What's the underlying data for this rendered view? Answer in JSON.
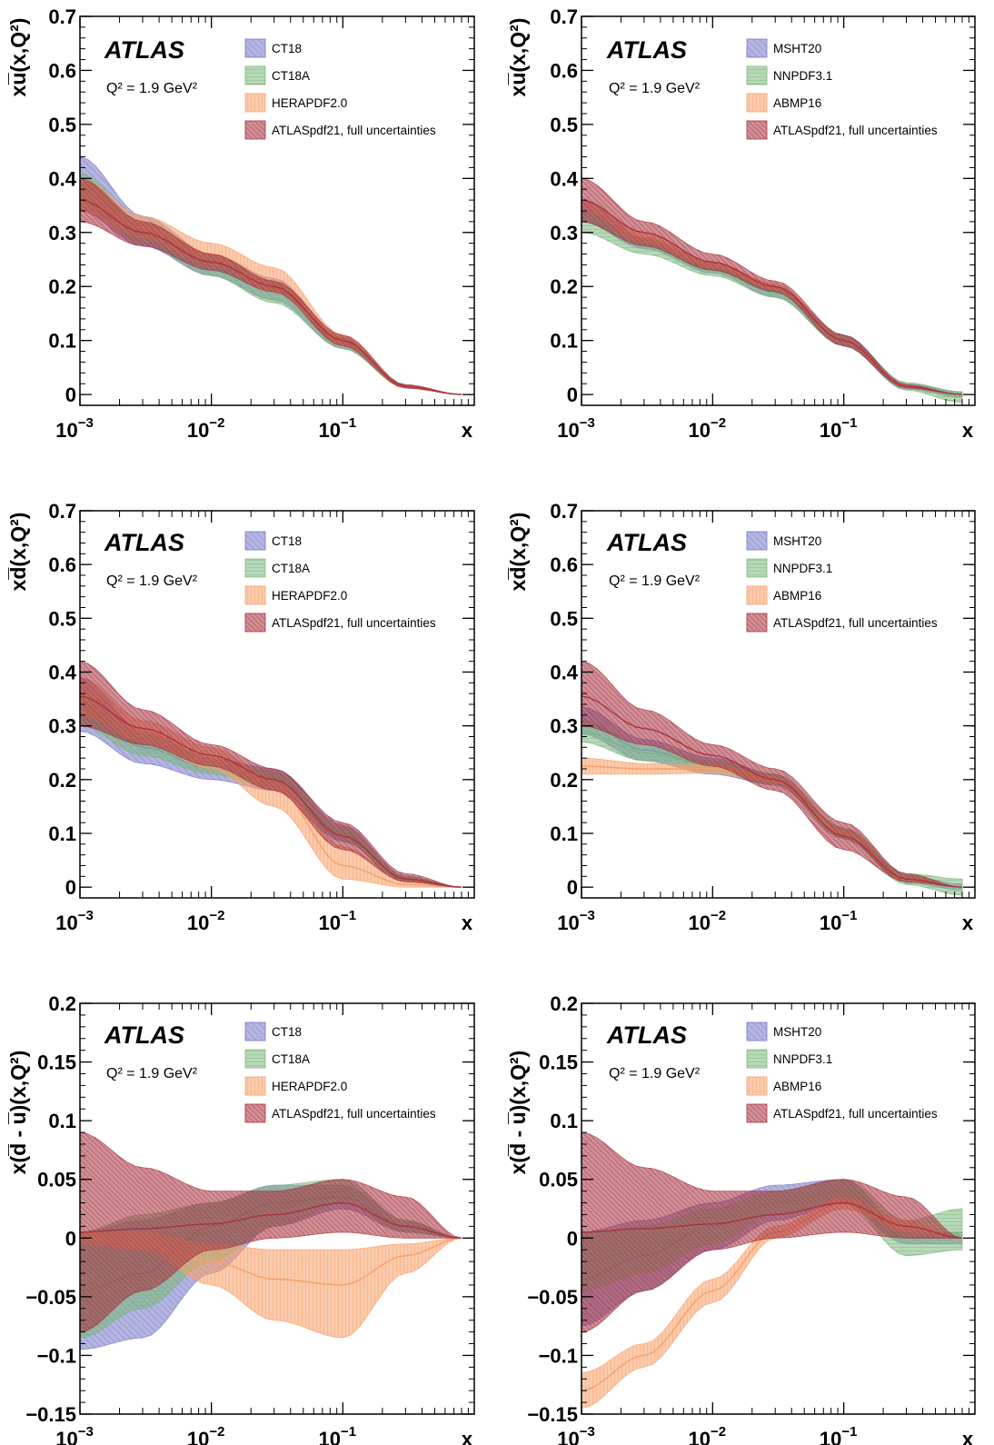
{
  "figure": {
    "experiment": "ATLAS",
    "scale_label": "Q² = 1.9 GeV²",
    "x_axis_symbol": "x",
    "x_tick_labels": [
      "10",
      "10",
      "10"
    ],
    "x_tick_exponents": [
      "−3",
      "−2",
      "−1"
    ]
  },
  "colors": {
    "blue": "#7878c8",
    "green": "#7cb87c",
    "orange": "#f7a06a",
    "red": "#a83240",
    "frame": "#000000"
  },
  "chart_data": [
    {
      "type": "line",
      "panel": "row1-left",
      "ylabel": "xu̅(x,Q²)",
      "xscale": "log",
      "xlim": [
        0.001,
        1
      ],
      "ylim": [
        -0.02,
        0.7
      ],
      "yticks": [
        0,
        0.1,
        0.2,
        0.3,
        0.4,
        0.5,
        0.6,
        0.7
      ],
      "ytick_labels": [
        "0",
        "0.1",
        "0.2",
        "0.3",
        "0.4",
        "0.5",
        "0.6",
        "0.7"
      ],
      "legend": [
        "CT18",
        "CT18A",
        "HERAPDF2.0",
        "ATLASpdf21, full uncertainties"
      ],
      "x": [
        0.001,
        0.003,
        0.01,
        0.03,
        0.1,
        0.3,
        0.8
      ],
      "series": [
        {
          "name": "CT18",
          "color": "blue",
          "values": [
            0.39,
            0.3,
            0.24,
            0.195,
            0.095,
            0.015,
            0
          ],
          "lower": [
            0.34,
            0.275,
            0.22,
            0.175,
            0.085,
            0.012,
            0
          ],
          "upper": [
            0.44,
            0.33,
            0.26,
            0.215,
            0.105,
            0.018,
            0
          ]
        },
        {
          "name": "CT18A",
          "color": "green",
          "values": [
            0.38,
            0.3,
            0.24,
            0.19,
            0.095,
            0.015,
            0
          ],
          "lower": [
            0.35,
            0.28,
            0.22,
            0.17,
            0.085,
            0.012,
            0
          ],
          "upper": [
            0.41,
            0.32,
            0.26,
            0.21,
            0.105,
            0.018,
            0
          ]
        },
        {
          "name": "HERAPDF2.0",
          "color": "orange",
          "values": [
            0.37,
            0.31,
            0.26,
            0.21,
            0.1,
            0.015,
            0
          ],
          "lower": [
            0.34,
            0.29,
            0.24,
            0.19,
            0.09,
            0.012,
            0
          ],
          "upper": [
            0.4,
            0.33,
            0.28,
            0.235,
            0.11,
            0.018,
            0
          ]
        },
        {
          "name": "ATLASpdf21, full uncertainties",
          "color": "red",
          "values": [
            0.36,
            0.3,
            0.245,
            0.2,
            0.1,
            0.015,
            0
          ],
          "lower": [
            0.32,
            0.275,
            0.23,
            0.19,
            0.09,
            0.012,
            0
          ],
          "upper": [
            0.4,
            0.32,
            0.26,
            0.21,
            0.11,
            0.018,
            0
          ]
        }
      ]
    },
    {
      "type": "line",
      "panel": "row1-right",
      "ylabel": "xu̅(x,Q²)",
      "xscale": "log",
      "xlim": [
        0.001,
        1
      ],
      "ylim": [
        -0.02,
        0.7
      ],
      "yticks": [
        0,
        0.1,
        0.2,
        0.3,
        0.4,
        0.5,
        0.6,
        0.7
      ],
      "ytick_labels": [
        "0",
        "0.1",
        "0.2",
        "0.3",
        "0.4",
        "0.5",
        "0.6",
        "0.7"
      ],
      "legend": [
        "MSHT20",
        "NNPDF3.1",
        "ABMP16",
        "ATLASpdf21, full uncertainties"
      ],
      "x": [
        0.001,
        0.003,
        0.01,
        0.03,
        0.1,
        0.3,
        0.8
      ],
      "series": [
        {
          "name": "MSHT20",
          "color": "blue",
          "values": [
            0.34,
            0.28,
            0.235,
            0.19,
            0.1,
            0.015,
            0
          ],
          "lower": [
            0.32,
            0.27,
            0.225,
            0.18,
            0.09,
            0.01,
            -0.005
          ],
          "upper": [
            0.36,
            0.29,
            0.245,
            0.2,
            0.11,
            0.02,
            0.005
          ]
        },
        {
          "name": "NNPDF3.1",
          "color": "green",
          "values": [
            0.32,
            0.275,
            0.23,
            0.19,
            0.1,
            0.015,
            -0.005
          ],
          "lower": [
            0.3,
            0.26,
            0.22,
            0.18,
            0.09,
            0.008,
            -0.015
          ],
          "upper": [
            0.34,
            0.29,
            0.24,
            0.2,
            0.11,
            0.022,
            0.005
          ]
        },
        {
          "name": "ABMP16",
          "color": "orange",
          "values": [
            0.35,
            0.29,
            0.24,
            0.2,
            0.1,
            0.015,
            0
          ],
          "lower": [
            0.34,
            0.28,
            0.235,
            0.195,
            0.097,
            0.013,
            0
          ],
          "upper": [
            0.36,
            0.3,
            0.245,
            0.205,
            0.103,
            0.017,
            0
          ]
        },
        {
          "name": "ATLASpdf21, full uncertainties",
          "color": "red",
          "values": [
            0.36,
            0.3,
            0.245,
            0.2,
            0.1,
            0.015,
            0
          ],
          "lower": [
            0.32,
            0.275,
            0.23,
            0.19,
            0.09,
            0.012,
            0
          ],
          "upper": [
            0.4,
            0.32,
            0.26,
            0.21,
            0.11,
            0.018,
            0
          ]
        }
      ]
    },
    {
      "type": "line",
      "panel": "row2-left",
      "ylabel": "xd̅(x,Q²)",
      "xscale": "log",
      "xlim": [
        0.001,
        1
      ],
      "ylim": [
        -0.02,
        0.7
      ],
      "yticks": [
        0,
        0.1,
        0.2,
        0.3,
        0.4,
        0.5,
        0.6,
        0.7
      ],
      "ytick_labels": [
        "0",
        "0.1",
        "0.2",
        "0.3",
        "0.4",
        "0.5",
        "0.6",
        "0.7"
      ],
      "legend": [
        "CT18",
        "CT18A",
        "HERAPDF2.0",
        "ATLASpdf21, full uncertainties"
      ],
      "x": [
        0.001,
        0.003,
        0.01,
        0.03,
        0.1,
        0.3,
        0.8
      ],
      "series": [
        {
          "name": "CT18",
          "color": "blue",
          "values": [
            0.34,
            0.26,
            0.22,
            0.2,
            0.1,
            0.015,
            0
          ],
          "lower": [
            0.29,
            0.23,
            0.2,
            0.18,
            0.085,
            0.01,
            0
          ],
          "upper": [
            0.39,
            0.29,
            0.24,
            0.22,
            0.115,
            0.02,
            0
          ]
        },
        {
          "name": "CT18A",
          "color": "green",
          "values": [
            0.33,
            0.265,
            0.225,
            0.2,
            0.1,
            0.015,
            0
          ],
          "lower": [
            0.3,
            0.245,
            0.21,
            0.185,
            0.088,
            0.01,
            0
          ],
          "upper": [
            0.36,
            0.285,
            0.24,
            0.215,
            0.112,
            0.02,
            0
          ]
        },
        {
          "name": "HERAPDF2.0",
          "color": "orange",
          "values": [
            0.36,
            0.29,
            0.24,
            0.19,
            0.04,
            0.005,
            0
          ],
          "lower": [
            0.32,
            0.27,
            0.22,
            0.15,
            0.015,
            0,
            0
          ],
          "upper": [
            0.39,
            0.31,
            0.26,
            0.2,
            0.075,
            0.012,
            0
          ]
        },
        {
          "name": "ATLASpdf21, full uncertainties",
          "color": "red",
          "values": [
            0.355,
            0.295,
            0.245,
            0.2,
            0.095,
            0.015,
            0
          ],
          "lower": [
            0.3,
            0.265,
            0.225,
            0.18,
            0.07,
            0.01,
            0
          ],
          "upper": [
            0.42,
            0.33,
            0.265,
            0.22,
            0.12,
            0.025,
            0
          ]
        }
      ]
    },
    {
      "type": "line",
      "panel": "row2-right",
      "ylabel": "xd̅(x,Q²)",
      "xscale": "log",
      "xlim": [
        0.001,
        1
      ],
      "ylim": [
        -0.02,
        0.7
      ],
      "yticks": [
        0,
        0.1,
        0.2,
        0.3,
        0.4,
        0.5,
        0.6,
        0.7
      ],
      "ytick_labels": [
        "0",
        "0.1",
        "0.2",
        "0.3",
        "0.4",
        "0.5",
        "0.6",
        "0.7"
      ],
      "legend": [
        "MSHT20",
        "NNPDF3.1",
        "ABMP16",
        "ATLASpdf21, full uncertainties"
      ],
      "x": [
        0.001,
        0.003,
        0.01,
        0.03,
        0.1,
        0.3,
        0.8
      ],
      "series": [
        {
          "name": "MSHT20",
          "color": "blue",
          "values": [
            0.31,
            0.255,
            0.225,
            0.2,
            0.1,
            0.015,
            0
          ],
          "lower": [
            0.285,
            0.235,
            0.21,
            0.19,
            0.09,
            0.008,
            -0.005
          ],
          "upper": [
            0.335,
            0.275,
            0.24,
            0.21,
            0.11,
            0.022,
            0.005
          ]
        },
        {
          "name": "NNPDF3.1",
          "color": "green",
          "values": [
            0.29,
            0.25,
            0.225,
            0.2,
            0.1,
            0.015,
            0
          ],
          "lower": [
            0.27,
            0.235,
            0.215,
            0.19,
            0.09,
            0.005,
            -0.015
          ],
          "upper": [
            0.31,
            0.265,
            0.235,
            0.21,
            0.11,
            0.025,
            0.015
          ]
        },
        {
          "name": "ABMP16",
          "color": "orange",
          "values": [
            0.225,
            0.22,
            0.22,
            0.2,
            0.1,
            0.015,
            0
          ],
          "lower": [
            0.21,
            0.21,
            0.212,
            0.195,
            0.096,
            0.012,
            0
          ],
          "upper": [
            0.24,
            0.23,
            0.228,
            0.205,
            0.104,
            0.018,
            0
          ]
        },
        {
          "name": "ATLASpdf21, full uncertainties",
          "color": "red",
          "values": [
            0.355,
            0.295,
            0.245,
            0.2,
            0.095,
            0.015,
            0
          ],
          "lower": [
            0.3,
            0.265,
            0.225,
            0.18,
            0.07,
            0.01,
            0
          ],
          "upper": [
            0.42,
            0.33,
            0.265,
            0.22,
            0.12,
            0.025,
            0
          ]
        }
      ]
    },
    {
      "type": "line",
      "panel": "row3-left",
      "ylabel": "x(d̅ - u̅)(x,Q²)",
      "xscale": "log",
      "xlim": [
        0.001,
        1
      ],
      "ylim": [
        -0.15,
        0.2
      ],
      "yticks": [
        -0.15,
        -0.1,
        -0.05,
        0,
        0.05,
        0.1,
        0.15,
        0.2
      ],
      "ytick_labels": [
        "−0.15",
        "−0.1",
        "−0.05",
        "0",
        "0.05",
        "0.1",
        "0.15",
        "0.2"
      ],
      "legend": [
        "CT18",
        "CT18A",
        "HERAPDF2.0",
        "ATLASpdf21, full uncertainties"
      ],
      "x": [
        0.001,
        0.003,
        0.01,
        0.03,
        0.1,
        0.3,
        0.8
      ],
      "series": [
        {
          "name": "CT18",
          "color": "blue",
          "values": [
            -0.045,
            -0.03,
            0.01,
            0.03,
            0.035,
            0.01,
            0
          ],
          "lower": [
            -0.095,
            -0.085,
            -0.03,
            0.01,
            0.025,
            0.005,
            0
          ],
          "upper": [
            0.005,
            0.015,
            0.03,
            0.045,
            0.045,
            0.015,
            0
          ]
        },
        {
          "name": "CT18A",
          "color": "green",
          "values": [
            -0.04,
            -0.02,
            0.005,
            0.025,
            0.04,
            0.01,
            0
          ],
          "lower": [
            -0.085,
            -0.06,
            -0.02,
            0.01,
            0.03,
            0.005,
            0
          ],
          "upper": [
            0.005,
            0.02,
            0.03,
            0.045,
            0.05,
            0.015,
            0
          ]
        },
        {
          "name": "HERAPDF2.0",
          "color": "orange",
          "values": [
            0,
            -0.005,
            -0.02,
            -0.035,
            -0.04,
            -0.015,
            0
          ],
          "lower": [
            -0.005,
            -0.01,
            -0.04,
            -0.07,
            -0.085,
            -0.03,
            0
          ],
          "upper": [
            0.005,
            0.005,
            -0.005,
            -0.01,
            -0.01,
            -0.005,
            0
          ]
        },
        {
          "name": "ATLASpdf21, full uncertainties",
          "color": "red",
          "values": [
            0.005,
            0.008,
            0.012,
            0.02,
            0.03,
            0.01,
            0
          ],
          "lower": [
            -0.08,
            -0.045,
            -0.01,
            0.0,
            0.005,
            0.0,
            0
          ],
          "upper": [
            0.09,
            0.06,
            0.04,
            0.04,
            0.05,
            0.035,
            0
          ]
        }
      ]
    },
    {
      "type": "line",
      "panel": "row3-right",
      "ylabel": "x(d̅ - u̅)(x,Q²)",
      "xscale": "log",
      "xlim": [
        0.001,
        1
      ],
      "ylim": [
        -0.15,
        0.2
      ],
      "yticks": [
        -0.15,
        -0.1,
        -0.05,
        0,
        0.05,
        0.1,
        0.15,
        0.2
      ],
      "ytick_labels": [
        "−0.15",
        "−0.1",
        "−0.05",
        "0",
        "0.05",
        "0.1",
        "0.15",
        "0.2"
      ],
      "legend": [
        "MSHT20",
        "NNPDF3.1",
        "ABMP16",
        "ATLASpdf21, full uncertainties"
      ],
      "x": [
        0.001,
        0.003,
        0.01,
        0.03,
        0.1,
        0.3,
        0.8
      ],
      "series": [
        {
          "name": "MSHT20",
          "color": "blue",
          "values": [
            -0.035,
            -0.015,
            0.01,
            0.03,
            0.04,
            0.0,
            0
          ],
          "lower": [
            -0.075,
            -0.045,
            -0.01,
            0.015,
            0.03,
            -0.005,
            -0.005
          ],
          "upper": [
            0.005,
            0.015,
            0.03,
            0.045,
            0.05,
            0.005,
            0.005
          ]
        },
        {
          "name": "NNPDF3.1",
          "color": "green",
          "values": [
            -0.02,
            -0.01,
            0.01,
            0.03,
            0.04,
            0.0,
            0.005
          ],
          "lower": [
            -0.045,
            -0.03,
            -0.005,
            0.02,
            0.03,
            -0.015,
            -0.01
          ],
          "upper": [
            0.005,
            0.01,
            0.025,
            0.04,
            0.05,
            0.015,
            0.025
          ]
        },
        {
          "name": "ABMP16",
          "color": "orange",
          "values": [
            -0.13,
            -0.1,
            -0.045,
            0.005,
            0.03,
            0.01,
            0
          ],
          "lower": [
            -0.145,
            -0.11,
            -0.055,
            0.0,
            0.025,
            0.005,
            0
          ],
          "upper": [
            -0.115,
            -0.09,
            -0.035,
            0.01,
            0.035,
            0.015,
            0
          ]
        },
        {
          "name": "ATLASpdf21, full uncertainties",
          "color": "red",
          "values": [
            0.005,
            0.008,
            0.012,
            0.02,
            0.03,
            0.01,
            0
          ],
          "lower": [
            -0.08,
            -0.045,
            -0.01,
            0.0,
            0.005,
            0.0,
            0
          ],
          "upper": [
            0.09,
            0.06,
            0.04,
            0.04,
            0.05,
            0.035,
            0
          ]
        }
      ]
    }
  ]
}
